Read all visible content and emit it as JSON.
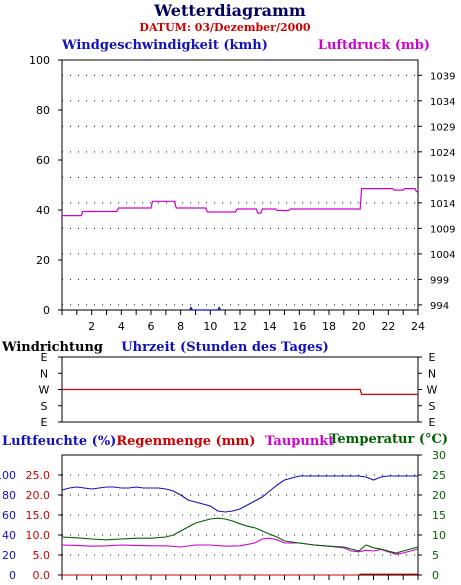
{
  "title": "Wetterdiagramm",
  "datum": "DATUM: 03/Dezember/2000",
  "colors": {
    "title": "#000060",
    "datum": "#cc0000",
    "wind": "#1010c0",
    "pressure": "#d000d0",
    "direction": "#cc0000",
    "humidity": "#1010c0",
    "rain": "#cc0000",
    "dewpoint": "#d000d0",
    "temperature": "#006000"
  },
  "chart_data": [
    {
      "type": "line",
      "y_label": "Windgeschwindigkeit (kmh)",
      "y2_label": "Luftdruck (mb)",
      "x_label": "Uhrzeit (Stunden des Tages)",
      "xlim": [
        0,
        24
      ],
      "x_ticks": [
        "2",
        "4",
        "6",
        "8",
        "10",
        "12",
        "14",
        "16",
        "18",
        "20",
        "22",
        "24"
      ],
      "ylim": [
        0,
        100
      ],
      "y_ticks": [
        "0",
        "20",
        "40",
        "60",
        "80",
        "100"
      ],
      "y2lim": [
        993,
        1042
      ],
      "y2_ticks": [
        "994",
        "999",
        "1004",
        "1009",
        "1014",
        "1019",
        "1024",
        "1029",
        "1034",
        "1039"
      ],
      "grid": true,
      "series": [
        {
          "name": "Windgeschwindigkeit (kmh)",
          "axis": "left",
          "points": [
            [
              8.6,
              0
            ],
            [
              8.7,
              1
            ],
            [
              8.8,
              0
            ],
            [
              10.5,
              0
            ],
            [
              10.6,
              1
            ],
            [
              10.7,
              0
            ]
          ]
        },
        {
          "name": "Luftdruck (mb)",
          "axis": "right",
          "points": [
            [
              0,
              1011.5
            ],
            [
              1.3,
              1011.5
            ],
            [
              1.4,
              1012.3
            ],
            [
              3.7,
              1012.3
            ],
            [
              3.8,
              1013.0
            ],
            [
              6.0,
              1013.0
            ],
            [
              6.1,
              1014.3
            ],
            [
              7.6,
              1014.3
            ],
            [
              7.7,
              1013.0
            ],
            [
              9.7,
              1013.0
            ],
            [
              9.8,
              1012.2
            ],
            [
              11.7,
              1012.2
            ],
            [
              11.8,
              1012.8
            ],
            [
              13.1,
              1012.8
            ],
            [
              13.2,
              1012.0
            ],
            [
              13.4,
              1012.0
            ],
            [
              13.5,
              1012.8
            ],
            [
              14.4,
              1012.8
            ],
            [
              14.5,
              1012.5
            ],
            [
              15.3,
              1012.5
            ],
            [
              15.4,
              1012.8
            ],
            [
              20.1,
              1012.8
            ],
            [
              20.2,
              1016.8
            ],
            [
              22.3,
              1016.8
            ],
            [
              22.4,
              1016.5
            ],
            [
              23.0,
              1016.5
            ],
            [
              23.1,
              1016.8
            ],
            [
              23.8,
              1016.8
            ],
            [
              23.9,
              1016.2
            ],
            [
              24,
              1016.2
            ]
          ]
        }
      ]
    },
    {
      "type": "line",
      "y_label": "Windrichtung",
      "xlim": [
        0,
        24
      ],
      "y_ticks": [
        "E",
        "N",
        "W",
        "S",
        "E"
      ],
      "series": [
        {
          "name": "Windrichtung",
          "points": [
            [
              0,
              "W"
            ],
            [
              20.1,
              "W"
            ],
            [
              20.2,
              "W-S"
            ],
            [
              24,
              "W-S"
            ]
          ]
        }
      ]
    },
    {
      "type": "line",
      "y_label": "Luftfeuchte (%)",
      "y_label_2": "Regenmenge (mm)",
      "y2_label": "Taupunkt",
      "y2_label_2": "Temperatur (°C)",
      "xlim": [
        0,
        24
      ],
      "humidity_ticks": [
        "0",
        "20",
        "40",
        "60",
        "80",
        "100"
      ],
      "humidity_lim": [
        0,
        120
      ],
      "rain_ticks": [
        "0.0",
        "5.0",
        "10.0",
        "15.0",
        "20.0",
        "25.0"
      ],
      "rain_lim": [
        0,
        30
      ],
      "temp_ticks": [
        "0",
        "5",
        "10",
        "15",
        "20",
        "25",
        "30"
      ],
      "temp_lim": [
        0,
        30
      ],
      "grid": true,
      "series": [
        {
          "name": "Luftfeuchte (%)",
          "axis": "left",
          "points": [
            [
              0,
              85
            ],
            [
              0.5,
              87
            ],
            [
              1,
              88
            ],
            [
              1.5,
              87
            ],
            [
              2,
              86
            ],
            [
              2.5,
              87
            ],
            [
              3,
              88
            ],
            [
              3.5,
              88
            ],
            [
              4,
              87
            ],
            [
              4.5,
              87
            ],
            [
              5,
              88
            ],
            [
              5.5,
              87
            ],
            [
              6,
              87
            ],
            [
              6.5,
              87
            ],
            [
              7,
              86
            ],
            [
              7.5,
              84
            ],
            [
              8,
              80
            ],
            [
              8.5,
              75
            ],
            [
              9,
              73
            ],
            [
              9.5,
              71
            ],
            [
              10,
              69
            ],
            [
              10.5,
              64
            ],
            [
              11,
              63
            ],
            [
              11.5,
              64
            ],
            [
              12,
              66
            ],
            [
              12.5,
              70
            ],
            [
              13,
              74
            ],
            [
              13.5,
              78
            ],
            [
              14,
              84
            ],
            [
              14.5,
              90
            ],
            [
              15,
              95
            ],
            [
              15.5,
              97
            ],
            [
              16,
              99
            ],
            [
              17,
              99
            ],
            [
              18,
              99
            ],
            [
              19,
              99
            ],
            [
              20,
              99
            ],
            [
              20.5,
              98
            ],
            [
              21,
              95
            ],
            [
              21.5,
              98
            ],
            [
              22,
              99
            ],
            [
              23,
              99
            ],
            [
              24,
              99
            ]
          ]
        },
        {
          "name": "Regenmenge (mm)",
          "axis": "left",
          "points": [
            [
              0,
              0
            ],
            [
              20,
              0
            ],
            [
              20.1,
              0.2
            ],
            [
              24,
              0.2
            ]
          ]
        },
        {
          "name": "Taupunkt",
          "axis": "right",
          "points": [
            [
              0,
              7.5
            ],
            [
              1,
              7.4
            ],
            [
              2,
              7.2
            ],
            [
              3,
              7.3
            ],
            [
              4,
              7.5
            ],
            [
              5,
              7.4
            ],
            [
              6,
              7.3
            ],
            [
              7,
              7.3
            ],
            [
              8,
              7.0
            ],
            [
              9,
              7.5
            ],
            [
              10,
              7.5
            ],
            [
              11,
              7.2
            ],
            [
              12,
              7.3
            ],
            [
              13,
              8.0
            ],
            [
              13.5,
              9.0
            ],
            [
              14,
              9.2
            ],
            [
              14.5,
              8.8
            ],
            [
              15,
              8.0
            ],
            [
              16,
              8.0
            ],
            [
              17,
              7.5
            ],
            [
              18,
              7.2
            ],
            [
              19,
              6.8
            ],
            [
              19.5,
              6.0
            ],
            [
              20,
              5.8
            ],
            [
              20.5,
              6.2
            ],
            [
              21,
              6.0
            ],
            [
              21.5,
              6.4
            ],
            [
              22,
              5.8
            ],
            [
              22.5,
              5.2
            ],
            [
              23,
              5.5
            ],
            [
              23.5,
              6.0
            ],
            [
              24,
              6.5
            ]
          ]
        },
        {
          "name": "Temperatur (°C)",
          "axis": "right",
          "points": [
            [
              0,
              9.5
            ],
            [
              1,
              9.3
            ],
            [
              2,
              9.0
            ],
            [
              3,
              8.8
            ],
            [
              4,
              9.0
            ],
            [
              5,
              9.2
            ],
            [
              6,
              9.2
            ],
            [
              7,
              9.5
            ],
            [
              7.5,
              10.0
            ],
            [
              8,
              11.0
            ],
            [
              8.5,
              12.0
            ],
            [
              9,
              13.0
            ],
            [
              9.5,
              13.5
            ],
            [
              10,
              14.0
            ],
            [
              10.5,
              14.2
            ],
            [
              11,
              14.0
            ],
            [
              11.5,
              13.5
            ],
            [
              12,
              12.8
            ],
            [
              12.5,
              12.2
            ],
            [
              13,
              11.8
            ],
            [
              13.5,
              11.0
            ],
            [
              14,
              10.2
            ],
            [
              14.5,
              9.5
            ],
            [
              15,
              8.5
            ],
            [
              16,
              8.0
            ],
            [
              17,
              7.5
            ],
            [
              18,
              7.2
            ],
            [
              19,
              7.0
            ],
            [
              19.5,
              6.5
            ],
            [
              20,
              6.0
            ],
            [
              20.5,
              7.5
            ],
            [
              21,
              6.8
            ],
            [
              21.5,
              6.5
            ],
            [
              22,
              6.0
            ],
            [
              22.5,
              5.5
            ],
            [
              23,
              6.0
            ],
            [
              23.5,
              6.5
            ],
            [
              24,
              7.0
            ]
          ]
        }
      ]
    }
  ]
}
